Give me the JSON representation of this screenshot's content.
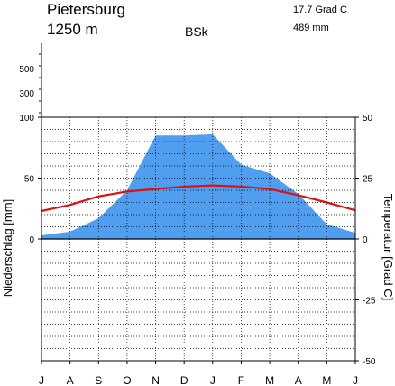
{
  "chart_data": {
    "type": "area",
    "station": "Pietersburg",
    "elevation": "1250 m",
    "climate_class": "BSk",
    "annual_temperature": "17.7 Grad C",
    "annual_precipitation": "489 mm",
    "months": [
      "J",
      "A",
      "S",
      "O",
      "N",
      "D",
      "J",
      "F",
      "M",
      "A",
      "M",
      "J"
    ],
    "precipitation_label": "Niederschlag [mm]",
    "temperature_label": "Temperatur [Grad C]",
    "precipitation_mm": [
      3,
      6,
      17,
      40,
      85,
      85,
      86,
      61,
      54,
      37,
      12,
      5
    ],
    "temperature_c": [
      11.5,
      14,
      17.5,
      19.5,
      20.5,
      21.5,
      22,
      21.5,
      20.5,
      18,
      15,
      11.8
    ],
    "precip_ticks_main": [
      "100",
      "50",
      "0"
    ],
    "precip_ticks_compressed": [
      "500",
      "300"
    ],
    "temp_ticks": [
      "50",
      "25",
      "0",
      "-25",
      "-50"
    ],
    "precip_ylim": [
      0,
      100
    ],
    "temp_ylim": [
      -50,
      50
    ],
    "precip_color": "#4f9ef0",
    "temp_color": "#dd1111",
    "grid": true
  }
}
